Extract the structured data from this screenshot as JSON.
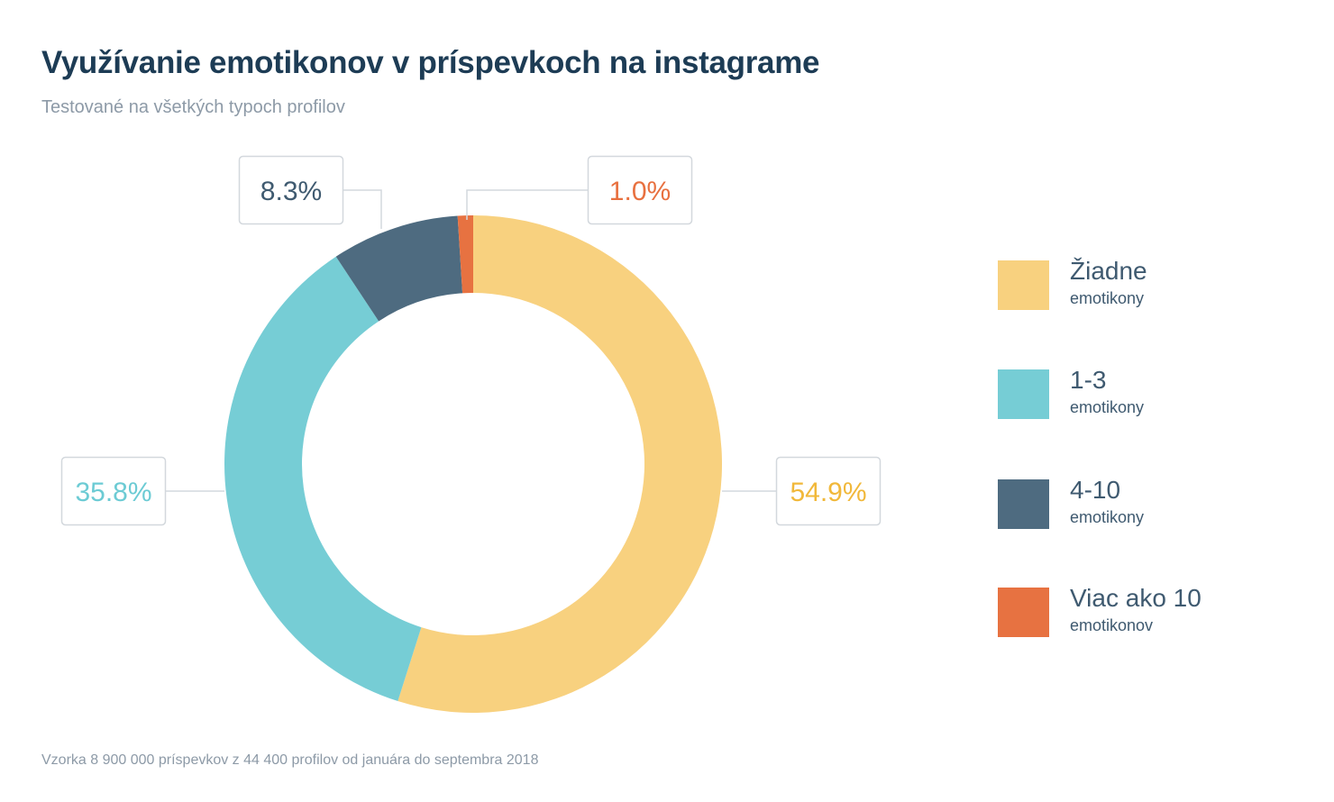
{
  "header": {
    "title": "Využívanie emotikonov v príspevkoch na instagrame",
    "subtitle": "Testované na všetkých typoch profilov"
  },
  "footer": {
    "note": "Vzorka 8 900 000 príspevkov z 44 400 profilov od januára do septembra 2018"
  },
  "chart_data": {
    "type": "pie",
    "variant": "donut",
    "title": "Využívanie emotikonov v príspevkoch na instagrame",
    "subtitle": "Testované na všetkých typoch profilov",
    "categories": [
      "Žiadne emotikony",
      "1-3 emotikony",
      "4-10 emotikony",
      "Viac ako 10 emotikonov"
    ],
    "values": [
      54.9,
      35.8,
      8.3,
      1.0
    ],
    "value_labels": [
      "54.9%",
      "35.8%",
      "8.3%",
      "1.0%"
    ],
    "colors": [
      "#f8d17f",
      "#76cdd5",
      "#4e6b80",
      "#e77241"
    ],
    "label_text_colors": [
      "#f1b83a",
      "#6ccbd4",
      "#3f5a70",
      "#e8703f"
    ],
    "legend_position": "right",
    "start_angle": "top",
    "direction": "clockwise"
  },
  "legend": {
    "items": [
      {
        "label": "Žiadne",
        "sub": "emotikony",
        "color": "#f8d17f"
      },
      {
        "label": "1-3",
        "sub": "emotikony",
        "color": "#76cdd5"
      },
      {
        "label": "4-10",
        "sub": "emotikony",
        "color": "#4e6b80"
      },
      {
        "label": "Viac ako 10",
        "sub": "emotikonov",
        "color": "#e77241"
      }
    ]
  }
}
